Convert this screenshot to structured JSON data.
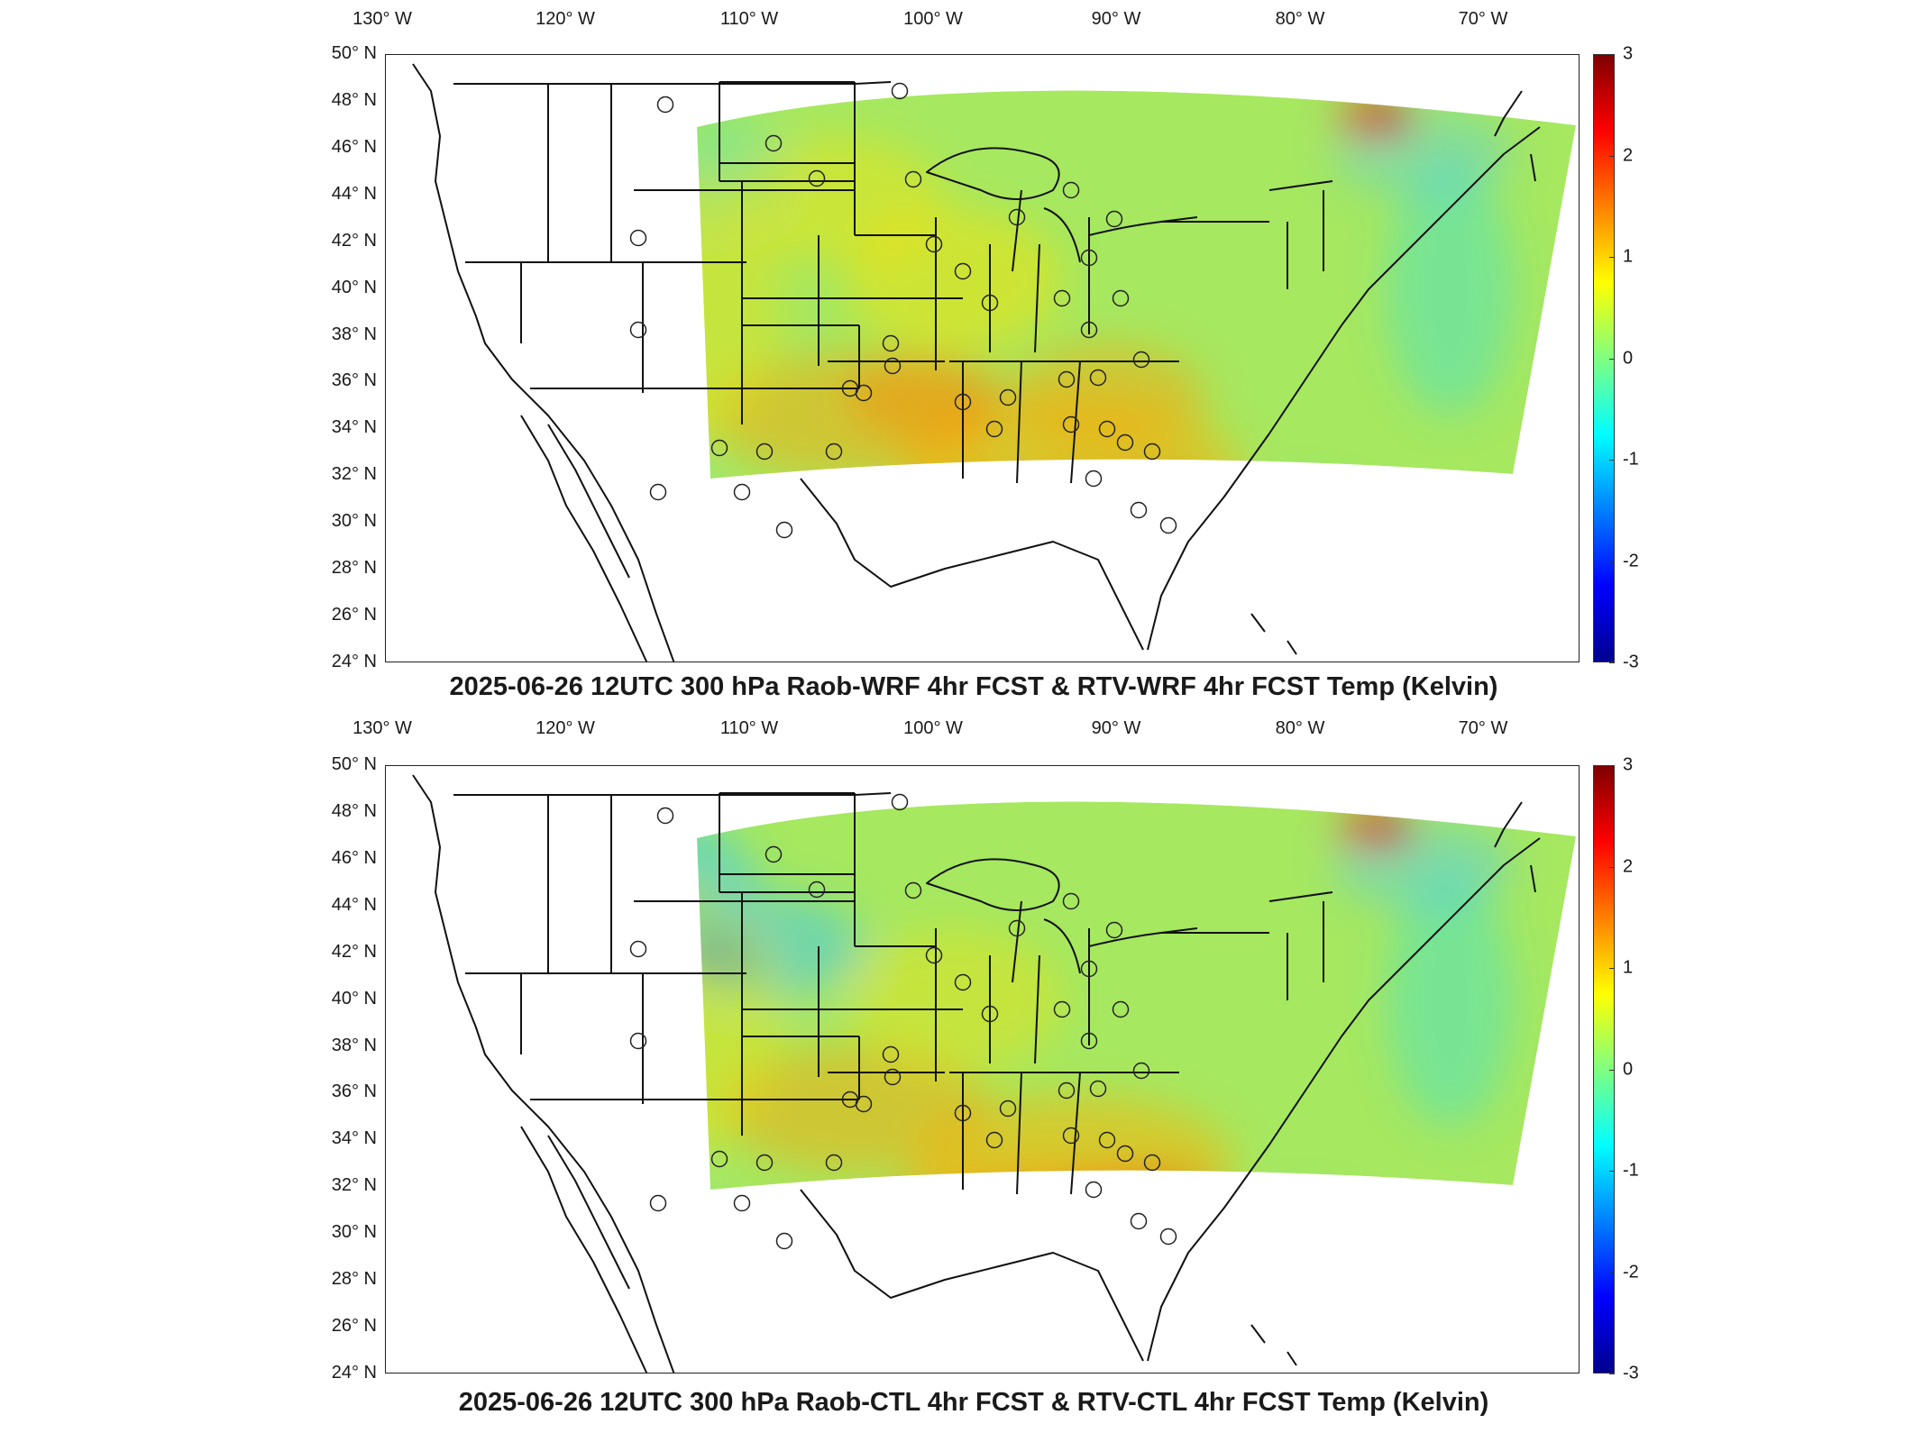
{
  "lon_labels": [
    "130° W",
    "120° W",
    "110° W",
    "100° W",
    "90° W",
    "80° W",
    "70° W"
  ],
  "lat_labels": [
    "50° N",
    "48° N",
    "46° N",
    "44° N",
    "42° N",
    "40° N",
    "38° N",
    "36° N",
    "34° N",
    "32° N",
    "30° N",
    "28° N",
    "26° N",
    "24° N"
  ],
  "colorbar": {
    "ticks": [
      "3",
      "2",
      "1",
      "0",
      "-1",
      "-2",
      "-3"
    ],
    "colors": [
      "#7f0000",
      "#ff0000",
      "#ff8000",
      "#ffff00",
      "#80ff80",
      "#00ffff",
      "#0080ff",
      "#0000ff",
      "#00008f"
    ]
  },
  "panels": [
    {
      "title": "2025-06-26 12UTC 300 hPa Raob-WRF 4hr FCST & RTV-WRF 4hr FCST Temp (Kelvin)"
    },
    {
      "title": "2025-06-26 12UTC 300 hPa Raob-CTL 4hr FCST & RTV-CTL 4hr FCST Temp (Kelvin)"
    }
  ]
}
